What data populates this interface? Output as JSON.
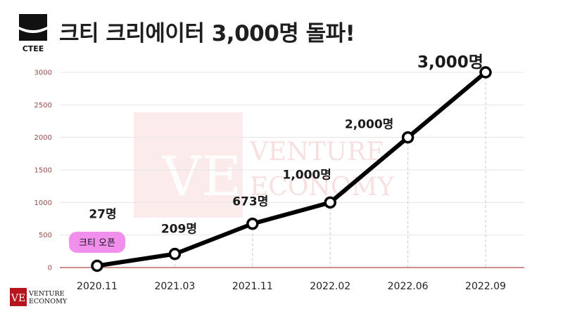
{
  "title": "크티 크리에이터 3,000명 돌파!",
  "logo": {
    "brand": "CTEE",
    "icon": "ctee-logo"
  },
  "watermark": {
    "line1": "VENTURE",
    "line2": "ECONOMY",
    "mark": "VE"
  },
  "footer_logo": {
    "mark": "VE",
    "line1": "VENTURE",
    "line2": "ECONOMY"
  },
  "colors": {
    "line": "#000000",
    "axis": "#b04a4a",
    "tick_text": "#9a4a4a",
    "badge": "#f08fec",
    "watermark": "#f7dada"
  },
  "chart_data": {
    "type": "line",
    "categories": [
      "2020.11",
      "2021.03",
      "2021.11",
      "2022.02",
      "2022.06",
      "2022.09"
    ],
    "series": [
      {
        "values": [
          27,
          209,
          673,
          1000,
          2000,
          3000
        ]
      }
    ],
    "data_labels": [
      "27명",
      "209명",
      "673명",
      "1,000명",
      "2,000명",
      "3,000명"
    ],
    "annotation": {
      "category": "2020.11",
      "text": "크티 오픈"
    },
    "ylim": [
      0,
      3000
    ],
    "yticks": [
      0,
      500,
      1000,
      1500,
      2000,
      2500,
      3000
    ],
    "grid": true,
    "legend": "none"
  }
}
